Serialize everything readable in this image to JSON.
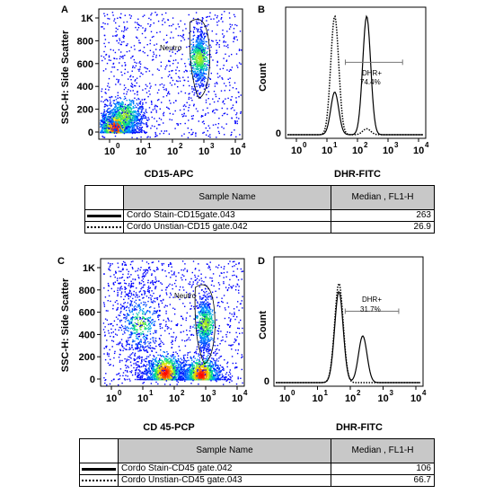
{
  "panels": {
    "A": {
      "letter": "A",
      "xlabel": "CD15-APC",
      "ylabel": "SSC-H: Side Scatter",
      "gate_label": "Neutro"
    },
    "B": {
      "letter": "B",
      "xlabel": "DHR-FITC",
      "ylabel": "Count",
      "gate_label": "DHR+",
      "gate_pct": "74.4%"
    },
    "C": {
      "letter": "C",
      "xlabel": "CD 45-PCP",
      "ylabel": "SSC-H: Side Scatter",
      "gate_label": "Neutro"
    },
    "D": {
      "letter": "D",
      "xlabel": "DHR-FITC",
      "ylabel": "Count",
      "gate_label": "DHR+",
      "gate_pct": "31.7%"
    }
  },
  "scatter_yticks": [
    "0",
    "200",
    "400",
    "600",
    "800",
    "1K"
  ],
  "hist_yticks": [
    "0",
    "Count"
  ],
  "log_xticks": [
    [
      "10",
      "0"
    ],
    [
      "10",
      "1"
    ],
    [
      "10",
      "2"
    ],
    [
      "10",
      "3"
    ],
    [
      "10",
      "4"
    ]
  ],
  "table1": {
    "col_sample": "Sample Name",
    "col_median": "Median , FL1-H",
    "rows": [
      {
        "name": "Cordo Stain-CD15gate.043",
        "median": "263",
        "style": "solid"
      },
      {
        "name": "Cordo Unstian-CD15 gate.042",
        "median": "26.9",
        "style": "dotted"
      }
    ]
  },
  "table2": {
    "col_sample": "Sample Name",
    "col_median": "Median , FL1-H",
    "rows": [
      {
        "name": "Cordo Stain-CD45 gate.042",
        "median": "106",
        "style": "solid"
      },
      {
        "name": "Cordo Unstian-CD45 gate.043",
        "median": "66.7",
        "style": "dotted"
      }
    ]
  },
  "chart_data": [
    {
      "type": "scatter",
      "title": "",
      "xlabel": "CD15-APC",
      "ylabel": "SSC-H: Side Scatter",
      "x_scale": "log",
      "xlim": [
        1,
        10000
      ],
      "ylim": [
        0,
        1000
      ],
      "yticks": [
        "0",
        "200",
        "400",
        "600",
        "800",
        "1K"
      ],
      "populations": [
        {
          "x": 1.5,
          "y": 40,
          "density": "high"
        },
        {
          "x": 3,
          "y": 150,
          "density": "medium"
        },
        {
          "x": 700,
          "y": 650,
          "density": "medium",
          "gate": "Neutro"
        }
      ]
    },
    {
      "type": "line",
      "title": "",
      "xlabel": "DHR-FITC",
      "ylabel": "Count",
      "x_scale": "log",
      "xlim": [
        1,
        10000
      ],
      "series": [
        {
          "style": "solid",
          "peaks": [
            {
              "x": 18,
              "height": 0.36
            },
            {
              "x": 200,
              "height": 1.0
            }
          ]
        },
        {
          "style": "dotted",
          "peaks": [
            {
              "x": 18,
              "height": 1.0
            },
            {
              "x": 200,
              "height": 0.05
            }
          ]
        }
      ],
      "gate": {
        "label": "DHR+",
        "percent": 74.4,
        "x_range": [
          40,
          3000
        ]
      }
    },
    {
      "type": "scatter",
      "title": "",
      "xlabel": "CD 45-PCP",
      "ylabel": "SSC-H: Side Scatter",
      "x_scale": "log",
      "xlim": [
        1,
        10000
      ],
      "ylim": [
        0,
        1000
      ],
      "yticks": [
        "0",
        "200",
        "400",
        "600",
        "800",
        "1K"
      ],
      "populations": [
        {
          "x": 8,
          "y": 500,
          "density": "medium"
        },
        {
          "x": 50,
          "y": 60,
          "density": "high"
        },
        {
          "x": 700,
          "y": 40,
          "density": "high"
        },
        {
          "x": 900,
          "y": 500,
          "density": "medium",
          "gate": "Neutro"
        }
      ]
    },
    {
      "type": "line",
      "title": "",
      "xlabel": "DHR-FITC",
      "ylabel": "Count",
      "x_scale": "log",
      "xlim": [
        1,
        10000
      ],
      "series": [
        {
          "style": "solid",
          "peaks": [
            {
              "x": 45,
              "height": 0.78
            },
            {
              "x": 240,
              "height": 0.4
            }
          ]
        },
        {
          "style": "dotted",
          "peaks": [
            {
              "x": 45,
              "height": 0.85
            }
          ]
        }
      ],
      "gate": {
        "label": "DHR+",
        "percent": 31.7,
        "x_range": [
          70,
          3000
        ]
      }
    }
  ]
}
